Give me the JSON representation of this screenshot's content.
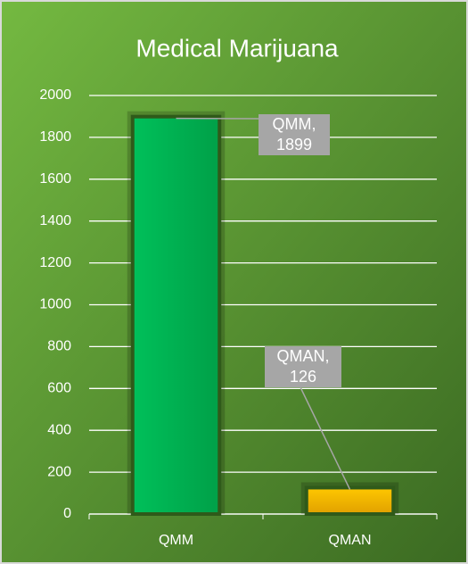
{
  "chart_data": {
    "type": "bar",
    "title": "Medical Marijuana",
    "categories": [
      "QMM",
      "QMAN"
    ],
    "values": [
      1899,
      126
    ],
    "value_labels": [
      "QMM, 1899",
      "QMAN, 126"
    ],
    "colors": [
      "#00b050",
      "#ffc000"
    ],
    "ylim": [
      0,
      2000
    ],
    "yticks": [
      0,
      200,
      400,
      600,
      800,
      1000,
      1200,
      1400,
      1600,
      1800,
      2000
    ],
    "grid": true
  }
}
